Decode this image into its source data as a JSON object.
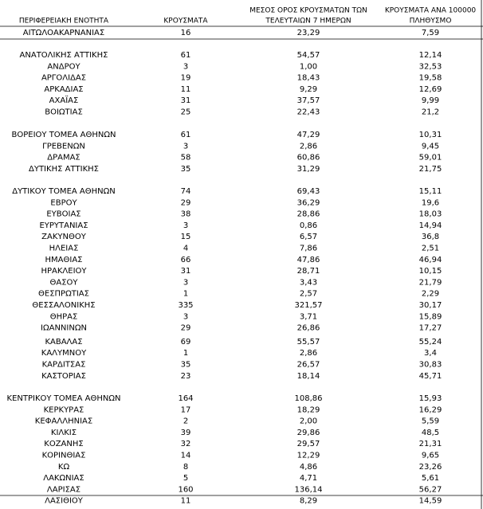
{
  "table": {
    "header": [
      "ΠΕΡΙΦΕΡΕΙΑΚΗ ΕΝΟΤΗΤΑ",
      "ΚΡΟΥΣΜΑΤΑ",
      [
        "ΜΕΣΟΣ ΟΡΟΣ ΚΡΟΥΣΜΑΤΩΝ ΤΩΝ",
        "ΤΕΛΕΥΤΑΙΩΝ 7 ΗΜΕΡΩΝ"
      ],
      [
        "ΚΡΟΥΣΜΑΤΑ ΑΝΑ 100000",
        "ΠΛΗΘΥΣΜΟ"
      ]
    ],
    "groups": [
      [
        [
          "ΑΙΤΩΛΟΑΚΑΡΝΑΝΙΑΣ",
          "16",
          "23,29",
          "7,59"
        ]
      ],
      [
        [
          "ΑΝΑΤΟΛΙΚΗΣ ΑΤΤΙΚΗΣ",
          "61",
          "54,57",
          "12,14"
        ],
        [
          "ΑΝΔΡΟΥ",
          "3",
          "1,00",
          "32,53"
        ],
        [
          "ΑΡΓΟΛΙΔΑΣ",
          "19",
          "18,43",
          "19,58"
        ],
        [
          "ΑΡΚΑΔΙΑΣ",
          "11",
          "9,29",
          "12,69"
        ],
        [
          "ΑΧΑΪΑΣ",
          "31",
          "37,57",
          "9,99"
        ],
        [
          "ΒΟΙΩΤΙΑΣ",
          "25",
          "22,43",
          "21,2"
        ]
      ],
      [
        [
          "ΒΟΡΕΙΟΥ ΤΟΜΕΑ ΑΘΗΝΩΝ",
          "61",
          "47,29",
          "10,31"
        ],
        [
          "ΓΡΕΒΕΝΩΝ",
          "3",
          "2,86",
          "9,45"
        ],
        [
          "ΔΡΑΜΑΣ",
          "58",
          "60,86",
          "59,01"
        ],
        [
          "ΔΥΤΙΚΗΣ ΑΤΤΙΚΗΣ",
          "35",
          "31,29",
          "21,75"
        ]
      ],
      [
        [
          "ΔΥΤΙΚΟΥ ΤΟΜΕΑ ΑΘΗΝΩΝ",
          "74",
          "69,43",
          "15,11"
        ],
        [
          "ΕΒΡΟΥ",
          "29",
          "36,29",
          "19,6"
        ],
        [
          "ΕΥΒΟΙΑΣ",
          "38",
          "28,86",
          "18,03"
        ],
        [
          "ΕΥΡΥΤΑΝΙΑΣ",
          "3",
          "0,86",
          "14,94"
        ],
        [
          "ΖΑΚΥΝΘΟΥ",
          "15",
          "6,57",
          "36,8"
        ],
        [
          "ΗΛΕΙΑΣ",
          "4",
          "7,86",
          "2,51"
        ],
        [
          "ΗΜΑΘΙΑΣ",
          "66",
          "47,86",
          "46,94"
        ],
        [
          "ΗΡΑΚΛΕΙΟΥ",
          "31",
          "28,71",
          "10,15"
        ],
        [
          "ΘΑΣΟΥ",
          "3",
          "3,43",
          "21,79"
        ],
        [
          "ΘΕΣΠΡΩΤΙΑΣ",
          "1",
          "2,57",
          "2,29"
        ],
        [
          "ΘΕΣΣΑΛΟΝΙΚΗΣ",
          "335",
          "321,57",
          "30,17"
        ],
        [
          "ΘΗΡΑΣ",
          "3",
          "3,71",
          "15,89"
        ],
        [
          "ΙΩΑΝΝΙΝΩΝ",
          "29",
          "26,86",
          "17,27"
        ],
        [
          "ΚΑΒΑΛΑΣ",
          "69",
          "55,57",
          "55,24"
        ],
        [
          "ΚΑΛΥΜΝΟΥ",
          "1",
          "2,86",
          "3,4"
        ],
        [
          "ΚΑΡΔΙΤΣΑΣ",
          "35",
          "26,57",
          "30,83"
        ],
        [
          "ΚΑΣΤΟΡΙΑΣ",
          "23",
          "18,14",
          "45,71"
        ]
      ],
      [
        [
          "ΚΕΝΤΡΙΚΟΥ ΤΟΜΕΑ ΑΘΗΝΩΝ",
          "164",
          "108,86",
          "15,93"
        ],
        [
          "ΚΕΡΚΥΡΑΣ",
          "17",
          "18,29",
          "16,29"
        ],
        [
          "ΚΕΦΑΛΛΗΝΙΑΣ",
          "2",
          "2,00",
          "5,59"
        ],
        [
          "ΚΙΛΚΙΣ",
          "39",
          "29,86",
          "48,5"
        ],
        [
          "ΚΟΖΑΝΗΣ",
          "32",
          "29,57",
          "21,31"
        ],
        [
          "ΚΟΡΙΝΘΙΑΣ",
          "14",
          "12,29",
          "9,65"
        ],
        [
          "ΚΩ",
          "8",
          "4,86",
          "23,26"
        ],
        [
          "ΛΑΚΩΝΙΑΣ",
          "5",
          "4,71",
          "5,61"
        ],
        [
          "ΛΑΡΙΣΑΣ",
          "160",
          "136,14",
          "56,27"
        ],
        [
          "ΛΑΣΙΘΙΟΥ",
          "11",
          "8,29",
          "14,59"
        ]
      ]
    ]
  }
}
